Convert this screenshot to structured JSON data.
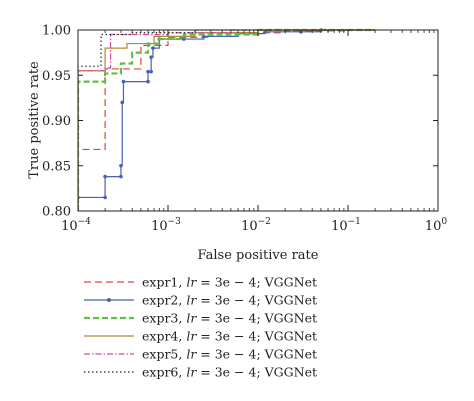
{
  "chart_data": {
    "type": "line",
    "xlabel": "False positive rate",
    "ylabel": "True positive rate",
    "xscale": "log",
    "xlim": [
      0.0001,
      1
    ],
    "ylim": [
      0.8,
      1.0
    ],
    "x_ticks": [
      {
        "value": 0.0001,
        "base": "10",
        "exp": "−4"
      },
      {
        "value": 0.001,
        "base": "10",
        "exp": "−3"
      },
      {
        "value": 0.01,
        "base": "10",
        "exp": "−2"
      },
      {
        "value": 0.1,
        "base": "10",
        "exp": "−1"
      },
      {
        "value": 1,
        "base": "10",
        "exp": "0"
      }
    ],
    "y_ticks": [
      "0.80",
      "0.85",
      "0.90",
      "0.95",
      "1.00"
    ],
    "legend_position": "below",
    "series": [
      {
        "name": "expr1",
        "color": "#e8413a",
        "dash": "7,4",
        "marker": false,
        "points": [
          [
            0.0001,
            0.8
          ],
          [
            0.0001,
            0.868
          ],
          [
            0.0002,
            0.868
          ],
          [
            0.0002,
            0.957
          ],
          [
            0.0005,
            0.957
          ],
          [
            0.0005,
            0.983
          ],
          [
            0.001,
            0.983
          ],
          [
            0.001,
            0.992
          ],
          [
            0.003,
            0.992
          ],
          [
            0.003,
            0.997
          ],
          [
            0.02,
            0.997
          ],
          [
            0.02,
            0.999
          ],
          [
            0.1,
            0.999
          ],
          [
            0.1,
            1.0
          ],
          [
            0.2,
            1.0
          ]
        ]
      },
      {
        "name": "expr2",
        "color": "#4a5fb5",
        "dash": "",
        "marker": true,
        "points": [
          [
            0.0001,
            0.8
          ],
          [
            0.0001,
            0.815
          ],
          [
            0.0002,
            0.815
          ],
          [
            0.0002,
            0.838
          ],
          [
            0.0003,
            0.838
          ],
          [
            0.0003,
            0.85
          ],
          [
            0.00031,
            0.85
          ],
          [
            0.00031,
            0.92
          ],
          [
            0.00032,
            0.92
          ],
          [
            0.00032,
            0.943
          ],
          [
            0.0006,
            0.943
          ],
          [
            0.0006,
            0.954
          ],
          [
            0.00065,
            0.954
          ],
          [
            0.00065,
            0.97
          ],
          [
            0.00068,
            0.97
          ],
          [
            0.00068,
            0.98
          ],
          [
            0.0008,
            0.98
          ],
          [
            0.0008,
            0.99
          ],
          [
            0.0025,
            0.99
          ],
          [
            0.0025,
            0.993
          ],
          [
            0.006,
            0.993
          ],
          [
            0.006,
            0.996
          ],
          [
            0.012,
            0.996
          ],
          [
            0.012,
            0.998
          ],
          [
            0.05,
            0.998
          ],
          [
            0.05,
            1.0
          ],
          [
            0.1,
            1.0
          ]
        ],
        "marker_points": [
          [
            0.0001,
            0.815
          ],
          [
            0.0002,
            0.815
          ],
          [
            0.0002,
            0.838
          ],
          [
            0.0003,
            0.838
          ],
          [
            0.0003,
            0.85
          ],
          [
            0.00031,
            0.92
          ],
          [
            0.00032,
            0.943
          ],
          [
            0.0006,
            0.943
          ],
          [
            0.0006,
            0.954
          ],
          [
            0.00065,
            0.954
          ],
          [
            0.00065,
            0.97
          ],
          [
            0.00068,
            0.98
          ],
          [
            0.0008,
            0.99
          ],
          [
            0.0015,
            0.99
          ],
          [
            0.0025,
            0.993
          ],
          [
            0.006,
            0.996
          ],
          [
            0.012,
            0.998
          ],
          [
            0.03,
            0.998
          ],
          [
            0.05,
            1.0
          ]
        ]
      },
      {
        "name": "expr3",
        "color": "#5fc142",
        "dash": "6,3",
        "marker": false,
        "width": 2.2,
        "points": [
          [
            0.0001,
            0.8
          ],
          [
            0.0001,
            0.943
          ],
          [
            0.0002,
            0.943
          ],
          [
            0.0002,
            0.952
          ],
          [
            0.0003,
            0.952
          ],
          [
            0.0003,
            0.963
          ],
          [
            0.0004,
            0.963
          ],
          [
            0.0004,
            0.975
          ],
          [
            0.0006,
            0.975
          ],
          [
            0.0006,
            0.985
          ],
          [
            0.0008,
            0.985
          ],
          [
            0.0008,
            0.99
          ],
          [
            0.0015,
            0.99
          ],
          [
            0.0015,
            0.995
          ],
          [
            0.01,
            0.995
          ],
          [
            0.01,
            1.0
          ],
          [
            0.2,
            1.0
          ]
        ]
      },
      {
        "name": "expr4",
        "color": "#b08838",
        "dash": "",
        "marker": false,
        "points": [
          [
            0.0001,
            0.8
          ],
          [
            0.0001,
            0.955
          ],
          [
            0.0002,
            0.955
          ],
          [
            0.0002,
            0.98
          ],
          [
            0.00035,
            0.98
          ],
          [
            0.00035,
            0.985
          ],
          [
            0.0007,
            0.985
          ],
          [
            0.0007,
            0.993
          ],
          [
            0.002,
            0.993
          ],
          [
            0.002,
            0.997
          ],
          [
            0.01,
            0.997
          ],
          [
            0.01,
            1.0
          ],
          [
            0.2,
            1.0
          ]
        ]
      },
      {
        "name": "expr5",
        "color": "#d04f9e",
        "dash": "6,2,1.5,2",
        "marker": false,
        "points": [
          [
            0.0001,
            0.8
          ],
          [
            0.0001,
            0.955
          ],
          [
            0.0002,
            0.955
          ],
          [
            0.0002,
            0.958
          ],
          [
            0.00023,
            0.958
          ],
          [
            0.00023,
            0.995
          ],
          [
            0.001,
            0.995
          ],
          [
            0.001,
            0.997
          ],
          [
            0.005,
            0.997
          ],
          [
            0.005,
            1.0
          ],
          [
            0.2,
            1.0
          ]
        ]
      },
      {
        "name": "expr6",
        "color": "#222222",
        "dash": "1.5,2.5",
        "marker": false,
        "points": [
          [
            0.0001,
            0.8
          ],
          [
            0.0001,
            0.96
          ],
          [
            0.00018,
            0.96
          ],
          [
            0.00018,
            0.995
          ],
          [
            0.0004,
            0.995
          ],
          [
            0.0004,
            0.997
          ],
          [
            0.002,
            0.997
          ],
          [
            0.002,
            1.0
          ],
          [
            0.2,
            1.0
          ]
        ]
      }
    ],
    "legend_suffix": {
      "lr_var": "lr",
      "lr_value": " = 3e − 4; VGGNet"
    }
  }
}
